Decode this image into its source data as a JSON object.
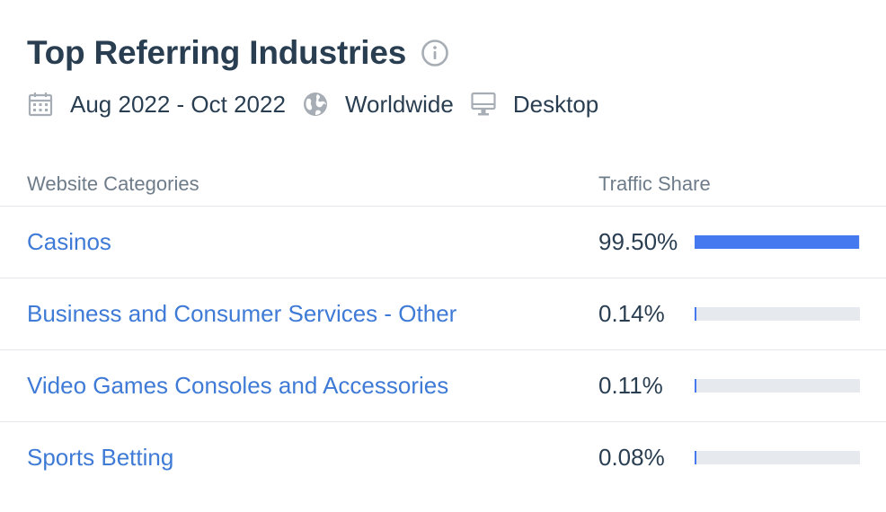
{
  "header": {
    "title": "Top Referring Industries",
    "info_icon": "info-icon",
    "date_range": "Aug 2022 - Oct 2022",
    "region": "Worldwide",
    "device": "Desktop",
    "icons": {
      "date": "calendar-icon",
      "region": "globe-icon",
      "device": "desktop-icon"
    }
  },
  "colors": {
    "accent": "#4479f0",
    "link": "#3f7bd6",
    "track": "#e6e9ed",
    "text": "#2a3e52",
    "muted": "#6e7c8a"
  },
  "table": {
    "columns": [
      "Website Categories",
      "Traffic Share"
    ],
    "rows": [
      {
        "category": "Casinos",
        "share_label": "99.50%",
        "share": 99.5
      },
      {
        "category": "Business and Consumer Services - Other",
        "share_label": "0.14%",
        "share": 0.14
      },
      {
        "category": "Video Games Consoles and Accessories",
        "share_label": "0.11%",
        "share": 0.11
      },
      {
        "category": "Sports Betting",
        "share_label": "0.08%",
        "share": 0.08
      }
    ]
  }
}
